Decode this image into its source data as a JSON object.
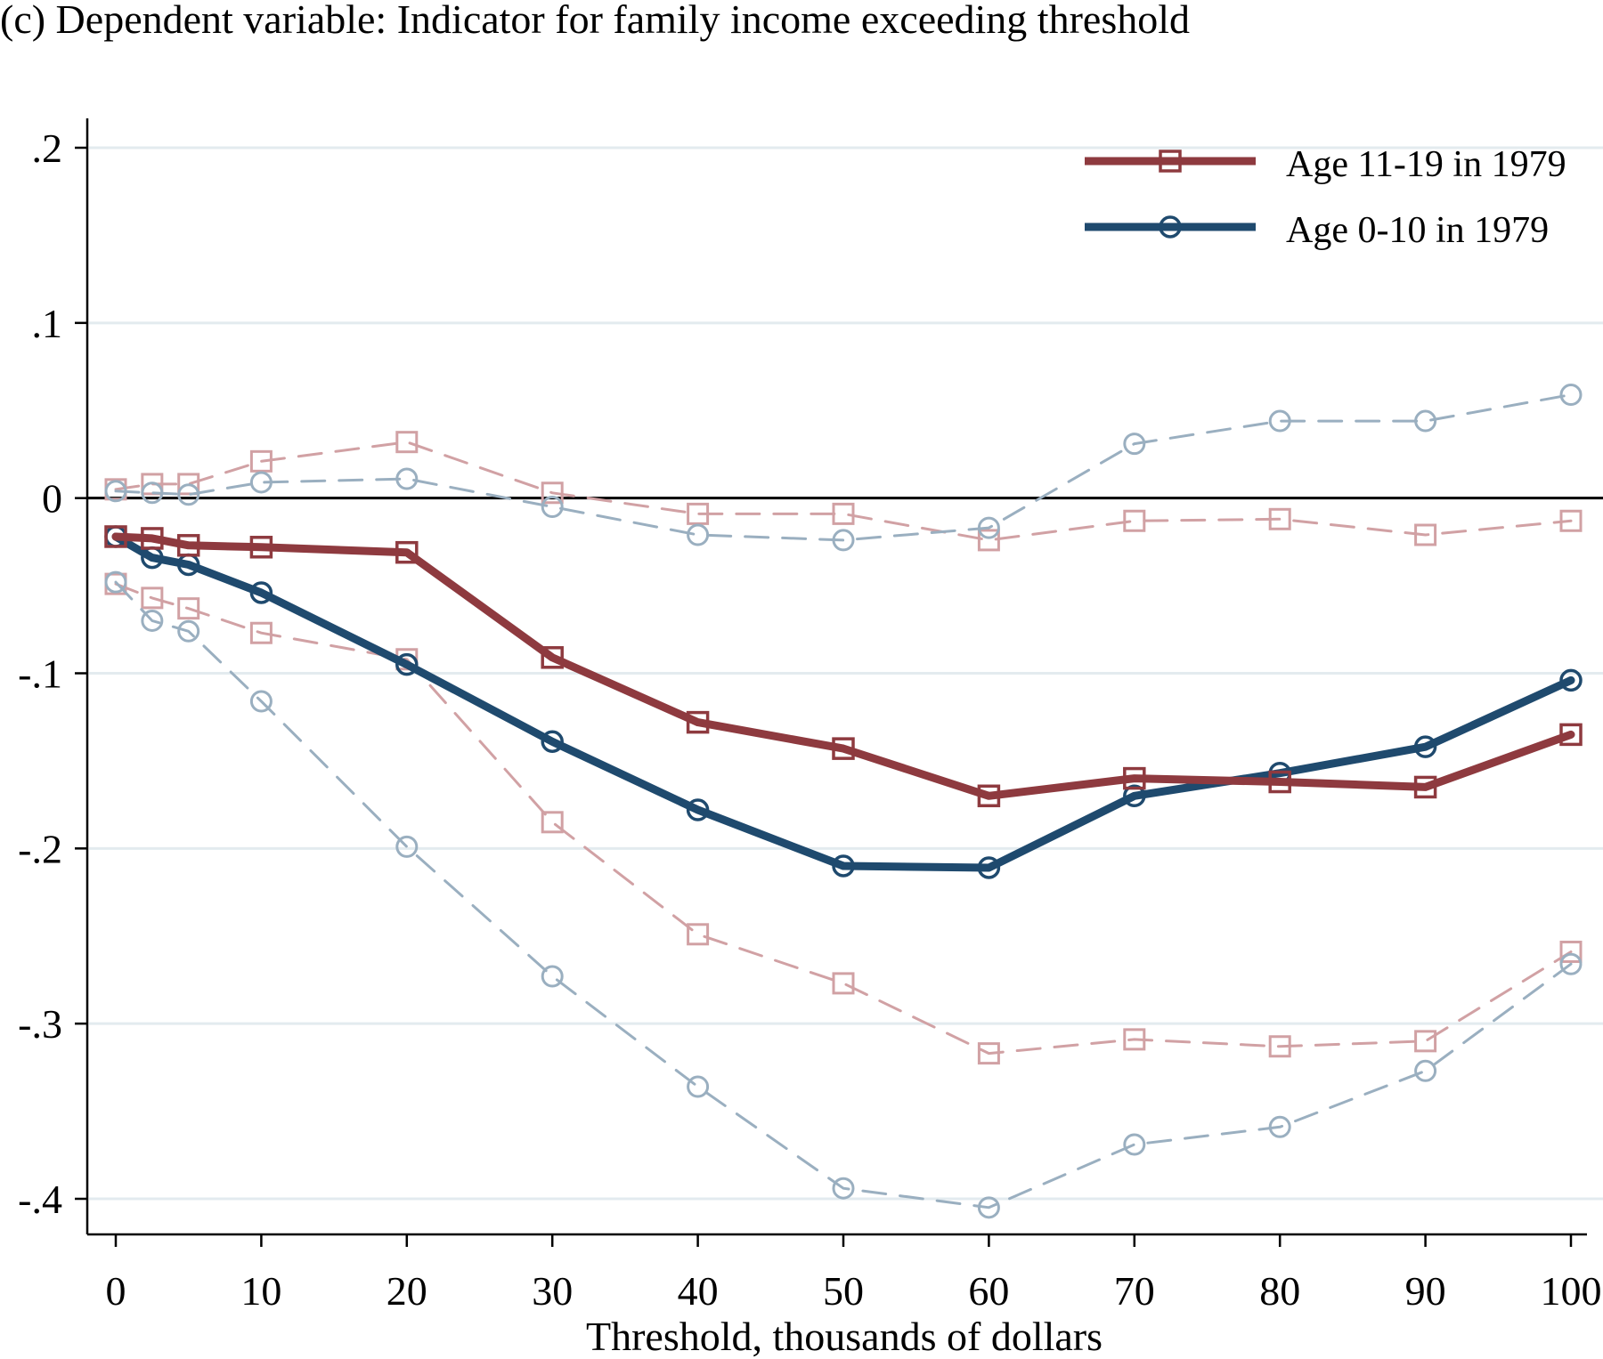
{
  "chart_data": {
    "type": "line",
    "title": "(c) Dependent variable: Indicator for family income exceeding threshold",
    "xlabel": "Threshold, thousands of dollars",
    "ylabel": "",
    "xlim": [
      0,
      100
    ],
    "ylim": [
      -0.4,
      0.2
    ],
    "x_ticks": [
      0,
      10,
      20,
      30,
      40,
      50,
      60,
      70,
      80,
      90,
      100
    ],
    "y_ticks": [
      {
        "value": 0.2,
        "label": ".2"
      },
      {
        "value": 0.1,
        "label": ".1"
      },
      {
        "value": 0,
        "label": "0"
      },
      {
        "value": -0.1,
        "label": "-.1"
      },
      {
        "value": -0.2,
        "label": "-.2"
      },
      {
        "value": -0.3,
        "label": "-.3"
      },
      {
        "value": -0.4,
        "label": "-.4"
      }
    ],
    "grid": true,
    "legend_position": "top-right",
    "x": [
      0,
      2.5,
      5,
      10,
      20,
      30,
      40,
      50,
      60,
      70,
      80,
      90,
      100
    ],
    "series": [
      {
        "name": "Age 11-19 in 1979",
        "kind": "estimate",
        "color": "#8e3a3f",
        "marker": "square",
        "values": [
          -0.022,
          -0.023,
          -0.027,
          -0.028,
          -0.031,
          -0.091,
          -0.128,
          -0.143,
          -0.17,
          -0.16,
          -0.162,
          -0.165,
          -0.135
        ]
      },
      {
        "name": "Age 0-10 in 1979",
        "kind": "estimate",
        "color": "#1f4a6e",
        "marker": "circle",
        "values": [
          -0.022,
          -0.034,
          -0.038,
          -0.054,
          -0.095,
          -0.139,
          -0.178,
          -0.21,
          -0.211,
          -0.17,
          -0.157,
          -0.142,
          -0.104
        ]
      },
      {
        "name": "Age 11-19 in 1979 CI upper",
        "kind": "ci",
        "color": "#d1a1a4",
        "marker": "square",
        "values": [
          0.005,
          0.008,
          0.008,
          0.021,
          0.032,
          0.003,
          -0.009,
          -0.009,
          -0.024,
          -0.013,
          -0.012,
          -0.021,
          -0.013
        ]
      },
      {
        "name": "Age 11-19 in 1979 CI lower",
        "kind": "ci",
        "color": "#d1a1a4",
        "marker": "square",
        "values": [
          -0.049,
          -0.057,
          -0.063,
          -0.077,
          -0.092,
          -0.185,
          -0.249,
          -0.277,
          -0.317,
          -0.309,
          -0.313,
          -0.31,
          -0.259
        ]
      },
      {
        "name": "Age 0-10 in 1979 CI upper",
        "kind": "ci",
        "color": "#9aafc0",
        "marker": "circle",
        "values": [
          0.004,
          0.003,
          0.002,
          0.009,
          0.011,
          -0.005,
          -0.021,
          -0.024,
          -0.017,
          0.031,
          0.044,
          0.044,
          0.059
        ]
      },
      {
        "name": "Age 0-10 in 1979 CI lower",
        "kind": "ci",
        "color": "#9aafc0",
        "marker": "circle",
        "values": [
          -0.048,
          -0.07,
          -0.076,
          -0.116,
          -0.199,
          -0.273,
          -0.336,
          -0.394,
          -0.405,
          -0.369,
          -0.359,
          -0.327,
          -0.266
        ]
      }
    ]
  }
}
